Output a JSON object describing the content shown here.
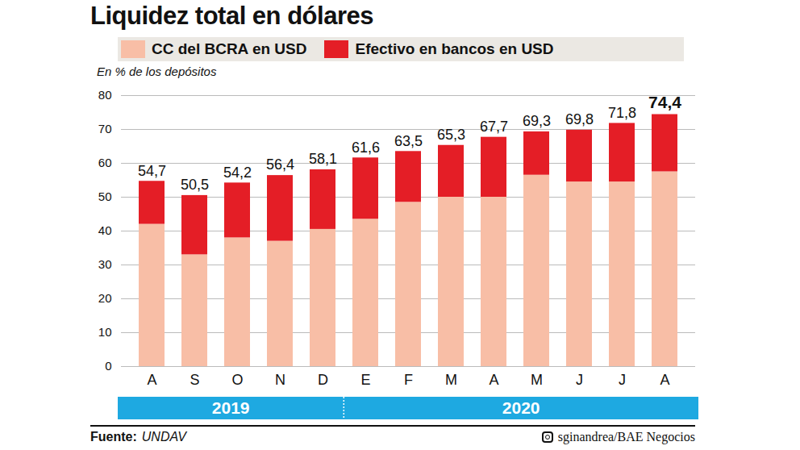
{
  "chart_data": {
    "type": "bar",
    "stacked": true,
    "title": "Liquidez total en dólares",
    "ylabel": "En % de los depósitos",
    "categories": [
      "A",
      "S",
      "O",
      "N",
      "D",
      "E",
      "F",
      "M",
      "A",
      "M",
      "J",
      "J",
      "A"
    ],
    "series": [
      {
        "name": "CC del BCRA en USD",
        "color": "#f8bea6",
        "values": [
          42,
          33,
          38,
          37,
          40.5,
          43.5,
          48.5,
          50,
          50,
          56.5,
          54.5,
          54.5,
          57.5
        ]
      },
      {
        "name": "Efectivo en bancos en USD",
        "color": "#e41e26",
        "values": [
          12.7,
          17.5,
          16.2,
          19.4,
          17.6,
          18.1,
          15,
          15.3,
          17.7,
          12.8,
          15.3,
          17.3,
          16.9
        ]
      }
    ],
    "totals": [
      54.7,
      50.5,
      54.2,
      56.4,
      58.1,
      61.6,
      63.5,
      65.3,
      67.7,
      69.3,
      69.8,
      71.8,
      74.4
    ],
    "total_labels": [
      "54,7",
      "50,5",
      "54,2",
      "56,4",
      "58,1",
      "61,6",
      "63,5",
      "65,3",
      "67,7",
      "69,3",
      "69,8",
      "71,8",
      "74,4"
    ],
    "year_groups": [
      {
        "label": "2019",
        "count": 5
      },
      {
        "label": "2020",
        "count": 8
      }
    ],
    "ylim": [
      0,
      80
    ],
    "yticks": [
      0,
      10,
      20,
      30,
      40,
      50,
      60,
      70,
      80
    ],
    "grid": true,
    "legend": "top",
    "source_label": "Fuente:",
    "source": "UNDAV",
    "credit": "sginandrea/BAE Negocios"
  }
}
